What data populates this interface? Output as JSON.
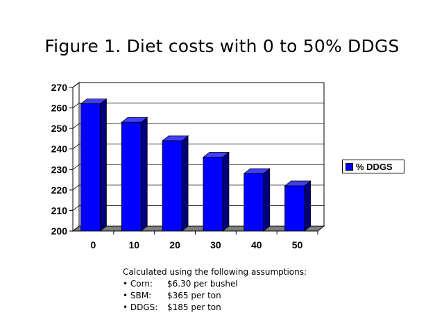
{
  "title": "Figure 1. Diet costs with 0 to 50% DDGS",
  "notes": {
    "heading": "Calculated using the following assumptions:",
    "items": [
      {
        "label": "• Corn:",
        "value": "$6.30 per bushel"
      },
      {
        "label": "• SBM:",
        "value": "$365 per ton"
      },
      {
        "label": "• DDGS:",
        "value": "$185 per ton"
      }
    ]
  },
  "chart_data": {
    "type": "bar",
    "title": "Figure 1. Diet costs with 0 to 50% DDGS",
    "xlabel": "",
    "ylabel": "",
    "categories": [
      "0",
      "10",
      "20",
      "30",
      "40",
      "50"
    ],
    "series": [
      {
        "name": "% DDGS",
        "values": [
          262,
          253,
          244,
          236,
          228,
          222
        ],
        "color": "#0000ff"
      }
    ],
    "ylim": [
      200,
      270
    ],
    "yticks": [
      200,
      210,
      220,
      230,
      240,
      250,
      260,
      270
    ],
    "grid": true,
    "legend": "right",
    "style": "3d"
  }
}
